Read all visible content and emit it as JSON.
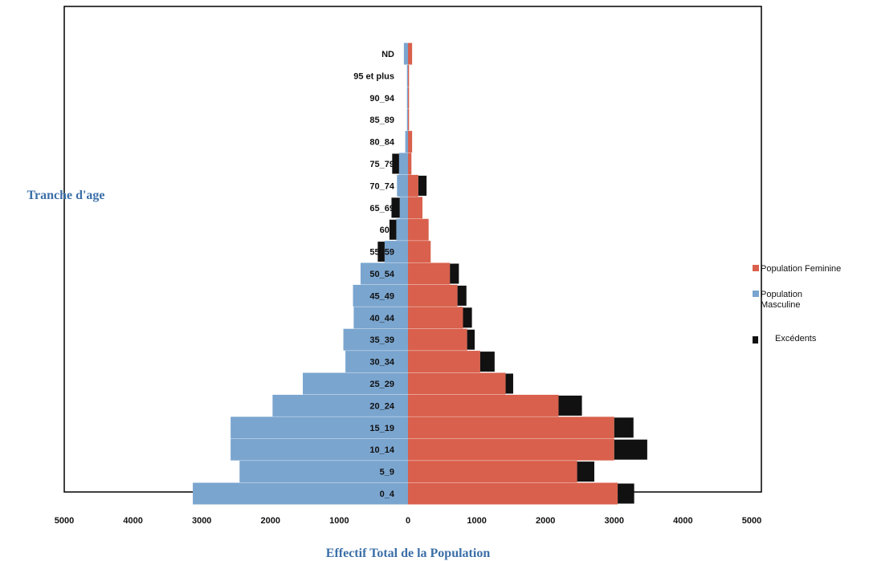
{
  "colors": {
    "female": "#d9604c",
    "male": "#7aa5cf",
    "excess": "#111111",
    "axis_title": "#3b6fa8"
  },
  "chart_data": {
    "type": "bar",
    "orientation": "horizontal-pyramid",
    "title": "",
    "xlabel": "Effectif Total de la Population",
    "ylabel": "Tranche d'age",
    "xlim": [
      -5000,
      5000
    ],
    "x_ticks": [
      -5000,
      -4000,
      -3000,
      -2000,
      -1000,
      0,
      1000,
      2000,
      3000,
      4000,
      5000
    ],
    "x_tick_labels": [
      "5000",
      "4000",
      "3000",
      "2000",
      "1000",
      "0",
      "1000",
      "2000",
      "3000",
      "4000",
      "5000"
    ],
    "grid": false,
    "legend_position": "right",
    "categories": [
      "0_4",
      "5_9",
      "10_14",
      "15_19",
      "20_24",
      "25_29",
      "30_34",
      "35_39",
      "40_44",
      "45_49",
      "50_54",
      "55_59",
      "60_64",
      "65_69",
      "70_74",
      "75_79",
      "80_84",
      "85_89",
      "90_94",
      "95 et plus",
      "ND"
    ],
    "category_labels": [
      "0_4",
      "5_9",
      "10_14",
      "15_19",
      "20_24",
      "25_29",
      "30_34",
      "35_39",
      "40_44",
      "45_49",
      "50_54",
      "55_59",
      "60_",
      "65_69",
      "70_74",
      "75_79",
      "80_84",
      "85_89",
      "90_94",
      "95 et plus",
      "ND"
    ],
    "series": [
      {
        "name": "Population Feminine",
        "side": "right",
        "values": [
          3050,
          2460,
          3000,
          3000,
          2190,
          1420,
          1050,
          860,
          800,
          720,
          610,
          330,
          300,
          210,
          150,
          50,
          60,
          15,
          15,
          15,
          60
        ]
      },
      {
        "name": "Population Masculine",
        "side": "left",
        "values": [
          3130,
          2450,
          2580,
          2580,
          1970,
          1530,
          910,
          940,
          790,
          800,
          690,
          340,
          170,
          120,
          160,
          130,
          40,
          15,
          15,
          15,
          60
        ]
      },
      {
        "name": "Excédents",
        "values": [
          240,
          250,
          480,
          280,
          340,
          110,
          210,
          110,
          130,
          130,
          130,
          100,
          100,
          120,
          120,
          100,
          0,
          0,
          0,
          0,
          0
        ]
      }
    ],
    "excess_side": [
      "right",
      "right",
      "right",
      "right",
      "right",
      "right",
      "right",
      "right",
      "right",
      "right",
      "right",
      "left",
      "left",
      "left",
      "right",
      "left",
      "none",
      "none",
      "none",
      "none",
      "none"
    ]
  }
}
